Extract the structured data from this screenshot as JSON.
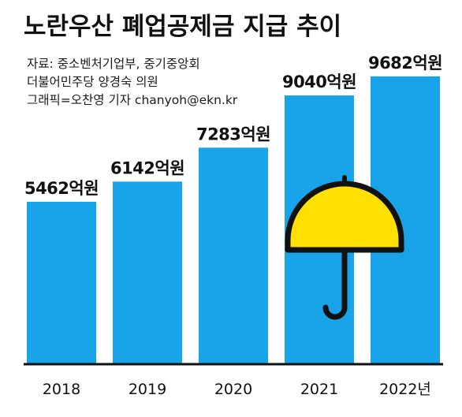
{
  "title": "노란우산 폐업공제금 지급 추이",
  "source_lines": [
    "자료: 중소벤처기업부, 중기중앙회",
    "더불어민주당 양경숙 의원",
    "그래픽=오찬영 기자 chanyoh@ekn.kr"
  ],
  "colors": {
    "bar": "#19A3E8",
    "umbrella_canopy": "#FFE000",
    "outline": "#111111"
  },
  "decorations": [
    "umbrella-icon"
  ],
  "chart_data": {
    "type": "bar",
    "title": "노란우산 폐업공제금 지급 추이",
    "categories": [
      "2018",
      "2019",
      "2020",
      "2021",
      "2022년"
    ],
    "values": [
      5462,
      6142,
      7283,
      9040,
      9682
    ],
    "value_labels": [
      "5462억원",
      "6142억원",
      "7283억원",
      "9040억원",
      "9682억원"
    ],
    "unit": "억원",
    "ylim": [
      0,
      10500
    ],
    "grid": false,
    "legend": "none"
  }
}
